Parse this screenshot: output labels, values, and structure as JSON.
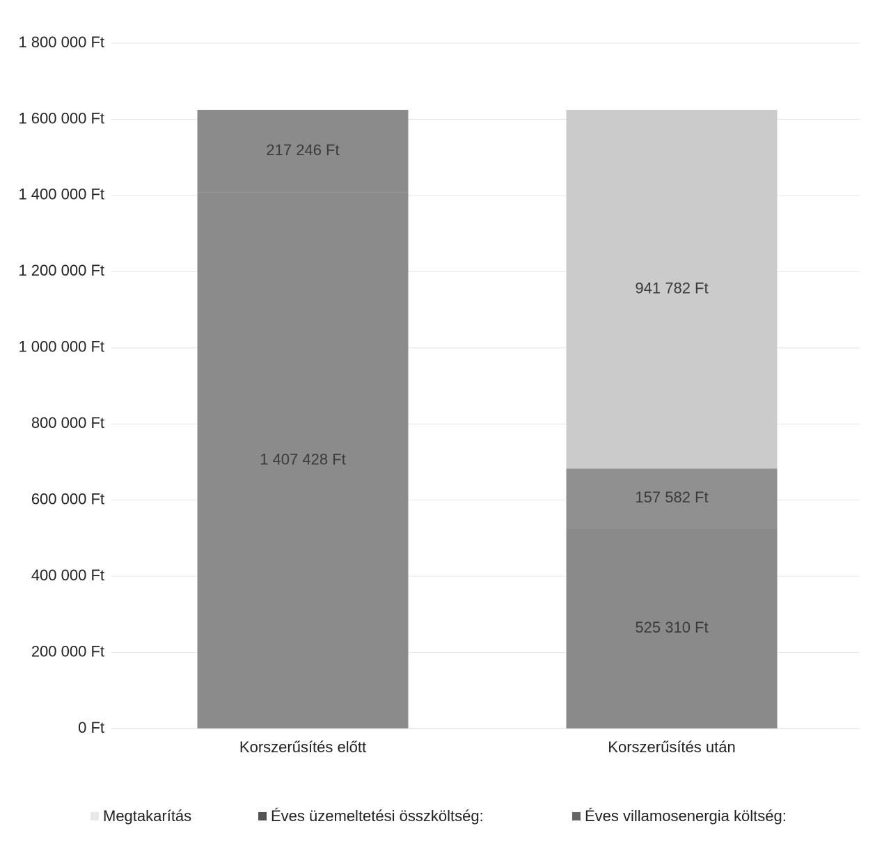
{
  "chart_data": {
    "type": "bar",
    "stacked": true,
    "categories": [
      "Korszerűsítés előtt",
      "Korszerűsítés után"
    ],
    "series": [
      {
        "name": "Éves villamosenergia költség:",
        "values": [
          0,
          525310
        ],
        "labels": [
          "",
          "525 310 Ft"
        ],
        "color": "#8a8a8a"
      },
      {
        "name": "Éves üzemeltetési összköltség:",
        "values": [
          1407428,
          157582
        ],
        "labels": [
          "1 407 428 Ft",
          "157 582 Ft"
        ],
        "color": "#8f8f8f"
      },
      {
        "name": "Megtakarítás",
        "values": [
          217246,
          941782
        ],
        "labels": [
          "217 246 Ft",
          "941 782 Ft"
        ],
        "color": "#c9c9c9"
      }
    ],
    "bar_colors": [
      [
        "#8b8b8b",
        "#8b8b8b",
        "#8b8b8b"
      ],
      [
        "#8a8a8a",
        "#909090",
        "#cbcbcb"
      ]
    ],
    "legend_order": [
      "Megtakarítás",
      "Éves üzemeltetési összköltség:",
      "Éves villamosenergia költség:"
    ],
    "legend_colors": [
      "#e8e8e8",
      "#555555",
      "#666666"
    ],
    "legend_position": "bottom",
    "yticks": [
      {
        "value": 0,
        "label": "0 Ft"
      },
      {
        "value": 200000,
        "label": "200 000 Ft"
      },
      {
        "value": 400000,
        "label": "400 000 Ft"
      },
      {
        "value": 600000,
        "label": "600 000 Ft"
      },
      {
        "value": 800000,
        "label": "800 000 Ft"
      },
      {
        "value": 1000000,
        "label": "1 000 000 Ft"
      },
      {
        "value": 1200000,
        "label": "1 200 000 Ft"
      },
      {
        "value": 1400000,
        "label": "1 400 000 Ft"
      },
      {
        "value": 1600000,
        "label": "1 600 000 Ft"
      },
      {
        "value": 1800000,
        "label": "1 800 000 Ft"
      }
    ],
    "ylim": [
      0,
      1800000
    ],
    "grid": true,
    "title": "",
    "xlabel": "",
    "ylabel": ""
  }
}
